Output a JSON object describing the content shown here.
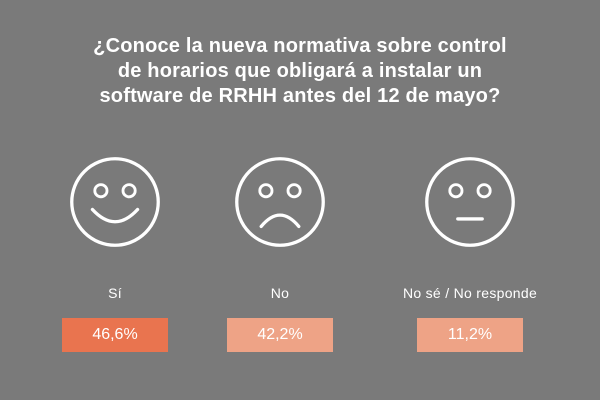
{
  "question": {
    "line1": "¿Conoce la nueva normativa sobre control",
    "line2": "de horarios que obligará a instalar un",
    "line3": "software de RRHH antes del 12 de mayo?"
  },
  "chart_data": {
    "type": "bar",
    "title": "¿Conoce la nueva normativa sobre control de horarios que obligará a instalar un software de RRHH antes del 12 de mayo?",
    "categories": [
      "Sí",
      "No",
      "No sé / No responde"
    ],
    "values": [
      46.6,
      42.2,
      11.2
    ],
    "value_labels": [
      "46,6%",
      "42,2%",
      "11,2%"
    ],
    "icons": [
      "happy-face-icon",
      "sad-face-icon",
      "neutral-face-icon"
    ]
  },
  "options": [
    {
      "label": "Sí",
      "value": "46,6%",
      "color": "#e9744f"
    },
    {
      "label": "No",
      "value": "42,2%",
      "color": "#eea386"
    },
    {
      "label": "No sé / No responde",
      "value": "11,2%",
      "color": "#eea386"
    }
  ],
  "colors": {
    "background": "#7a7a7a",
    "foreground": "#ffffff"
  }
}
